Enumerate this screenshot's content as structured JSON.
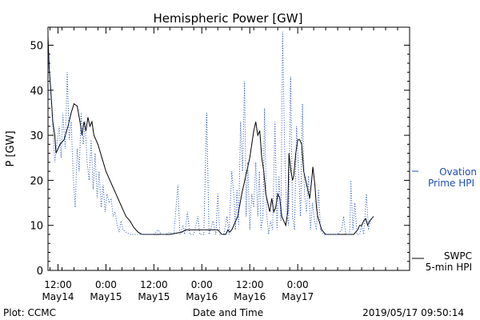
{
  "chart_data": {
    "type": "line",
    "title": "Hemispheric Power [GW]",
    "ylabel": "P [GW]",
    "xlabel": "Date and Time",
    "ylim": [
      0,
      54
    ],
    "xlim": [
      -2.5,
      88
    ],
    "yticks": [
      0,
      10,
      20,
      30,
      40,
      50
    ],
    "xticks": [
      {
        "x": 0,
        "top": "12:00",
        "bottom": "May14"
      },
      {
        "x": 12,
        "top": "0:00",
        "bottom": "May15"
      },
      {
        "x": 24,
        "top": "12:00",
        "bottom": "May15"
      },
      {
        "x": 36,
        "top": "0:00",
        "bottom": "May16"
      },
      {
        "x": 48,
        "top": "12:00",
        "bottom": "May16"
      },
      {
        "x": 60,
        "top": "0:00",
        "bottom": "May17"
      }
    ],
    "x_units": "hours from 2019-05-14 12:00 UT",
    "legend": {
      "ovation_line1": "Ovation",
      "ovation_line2": "Prime HPI",
      "swpc_line1": "SWPC",
      "swpc_line2": "5-min HPI"
    },
    "series": [
      {
        "name": "SWPC 5-min HPI",
        "color": "#000000",
        "style": "solid",
        "points": [
          [
            -2.5,
            52
          ],
          [
            -2.2,
            45
          ],
          [
            -1.8,
            40
          ],
          [
            -1.3,
            33
          ],
          [
            -0.8,
            30
          ],
          [
            -0.5,
            26
          ],
          [
            0.5,
            28
          ],
          [
            1.5,
            29
          ],
          [
            2.5,
            32
          ],
          [
            3.3,
            35
          ],
          [
            4,
            37
          ],
          [
            4.8,
            36.5
          ],
          [
            5.5,
            33
          ],
          [
            6,
            30
          ],
          [
            6.5,
            33
          ],
          [
            7,
            31
          ],
          [
            7.5,
            34
          ],
          [
            8,
            32
          ],
          [
            8.5,
            33
          ],
          [
            9,
            30
          ],
          [
            10,
            28
          ],
          [
            11,
            25
          ],
          [
            12,
            22
          ],
          [
            13,
            20
          ],
          [
            14,
            18
          ],
          [
            15,
            16
          ],
          [
            16,
            14
          ],
          [
            17,
            12
          ],
          [
            18,
            11
          ],
          [
            19,
            9.5
          ],
          [
            20,
            8.5
          ],
          [
            21,
            8
          ],
          [
            24,
            8
          ],
          [
            28,
            8
          ],
          [
            31,
            8.5
          ],
          [
            32,
            9
          ],
          [
            40,
            9
          ],
          [
            41,
            8
          ],
          [
            42,
            8
          ],
          [
            42.5,
            9
          ],
          [
            43,
            8.5
          ],
          [
            43.5,
            9
          ],
          [
            44,
            10
          ],
          [
            45,
            12
          ],
          [
            46,
            17
          ],
          [
            47,
            21
          ],
          [
            48,
            25
          ],
          [
            48.5,
            28
          ],
          [
            49,
            31
          ],
          [
            49.5,
            33
          ],
          [
            50,
            30
          ],
          [
            50.5,
            31
          ],
          [
            51,
            25
          ],
          [
            51.5,
            22
          ],
          [
            52,
            17
          ],
          [
            52.5,
            15
          ],
          [
            53,
            13
          ],
          [
            53.5,
            16
          ],
          [
            54,
            13
          ],
          [
            54.5,
            14
          ],
          [
            55,
            17
          ],
          [
            55.5,
            16
          ],
          [
            56,
            12
          ],
          [
            56.5,
            11
          ],
          [
            57,
            10
          ],
          [
            57.5,
            13
          ],
          [
            57.8,
            26
          ],
          [
            58.3,
            22
          ],
          [
            58.7,
            20
          ],
          [
            59,
            21
          ],
          [
            59.5,
            26
          ],
          [
            60,
            29
          ],
          [
            60.5,
            29
          ],
          [
            61,
            28
          ],
          [
            61.5,
            22
          ],
          [
            62,
            20
          ],
          [
            62.5,
            18
          ],
          [
            63,
            16
          ],
          [
            63.5,
            20
          ],
          [
            63.8,
            23
          ],
          [
            64.3,
            19
          ],
          [
            64.7,
            14
          ],
          [
            65,
            12
          ],
          [
            66,
            9
          ],
          [
            67,
            8
          ],
          [
            70,
            8
          ],
          [
            72,
            8
          ],
          [
            73,
            8
          ],
          [
            74,
            8
          ],
          [
            75,
            9
          ],
          [
            75.5,
            10
          ],
          [
            76,
            10
          ],
          [
            76.5,
            11
          ],
          [
            77,
            11.5
          ],
          [
            77.5,
            10
          ],
          [
            78,
            11
          ],
          [
            79,
            12
          ]
        ]
      },
      {
        "name": "Ovation Prime HPI",
        "color": "#1f4fb4",
        "style": "dotted",
        "points": [
          [
            -2.5,
            48
          ],
          [
            -2,
            42
          ],
          [
            -1.5,
            35
          ],
          [
            -1.2,
            30
          ],
          [
            -0.8,
            24
          ],
          [
            -0.3,
            28
          ],
          [
            0.3,
            32
          ],
          [
            0.8,
            25
          ],
          [
            1.2,
            35
          ],
          [
            1.8,
            27
          ],
          [
            2.3,
            44
          ],
          [
            2.8,
            29
          ],
          [
            3.3,
            33
          ],
          [
            3.8,
            21
          ],
          [
            4.3,
            14
          ],
          [
            4.8,
            27
          ],
          [
            5.3,
            22
          ],
          [
            5.8,
            35
          ],
          [
            6.3,
            28
          ],
          [
            6.8,
            33
          ],
          [
            7.3,
            24
          ],
          [
            7.8,
            20
          ],
          [
            8.3,
            29
          ],
          [
            8.8,
            18
          ],
          [
            9.3,
            26
          ],
          [
            9.8,
            16
          ],
          [
            10.3,
            22
          ],
          [
            10.8,
            14
          ],
          [
            11.3,
            19
          ],
          [
            11.8,
            13
          ],
          [
            12.3,
            17
          ],
          [
            12.8,
            15
          ],
          [
            13.3,
            16
          ],
          [
            13.8,
            12
          ],
          [
            14.3,
            13
          ],
          [
            14.8,
            10
          ],
          [
            15.3,
            8.5
          ],
          [
            15.8,
            11
          ],
          [
            16.3,
            9
          ],
          [
            17,
            8.5
          ],
          [
            18,
            8
          ],
          [
            20,
            8
          ],
          [
            22,
            8
          ],
          [
            24,
            8
          ],
          [
            25,
            9
          ],
          [
            26,
            8
          ],
          [
            27,
            8
          ],
          [
            28,
            8.5
          ],
          [
            29,
            8
          ],
          [
            30,
            19
          ],
          [
            30.5,
            8
          ],
          [
            31.3,
            10
          ],
          [
            31.7,
            8
          ],
          [
            32.4,
            13
          ],
          [
            33,
            8
          ],
          [
            34,
            8
          ],
          [
            35,
            12
          ],
          [
            35.5,
            8
          ],
          [
            36.5,
            8
          ],
          [
            37.2,
            35
          ],
          [
            37.8,
            8
          ],
          [
            38.8,
            11
          ],
          [
            39.5,
            8
          ],
          [
            40,
            17
          ],
          [
            40.5,
            8
          ],
          [
            41.5,
            8
          ],
          [
            42.3,
            12
          ],
          [
            42.8,
            8
          ],
          [
            43.5,
            22
          ],
          [
            44.1,
            16
          ],
          [
            44.4,
            9
          ],
          [
            44.8,
            18
          ],
          [
            45.2,
            10
          ],
          [
            45.7,
            33
          ],
          [
            46.2,
            22
          ],
          [
            46.7,
            42
          ],
          [
            47.1,
            12
          ],
          [
            47.5,
            24
          ],
          [
            48,
            9
          ],
          [
            48.5,
            17
          ],
          [
            49,
            14
          ],
          [
            49.5,
            24
          ],
          [
            50,
            12
          ],
          [
            50.4,
            22
          ],
          [
            50.8,
            9
          ],
          [
            51.3,
            12
          ],
          [
            51.7,
            36
          ],
          [
            52.2,
            13
          ],
          [
            52.7,
            8
          ],
          [
            53.2,
            11
          ],
          [
            53.7,
            9
          ],
          [
            54.3,
            33
          ],
          [
            54.8,
            9
          ],
          [
            55.3,
            21
          ],
          [
            55.8,
            11
          ],
          [
            56.2,
            53
          ],
          [
            56.7,
            28
          ],
          [
            57.2,
            13
          ],
          [
            57.7,
            10
          ],
          [
            58.2,
            43
          ],
          [
            58.7,
            12
          ],
          [
            59.2,
            9
          ],
          [
            59.7,
            32
          ],
          [
            60.2,
            22
          ],
          [
            60.7,
            12
          ],
          [
            61.2,
            37
          ],
          [
            61.7,
            17
          ],
          [
            62.2,
            13
          ],
          [
            62.7,
            21
          ],
          [
            63.2,
            9
          ],
          [
            63.7,
            15
          ],
          [
            64.2,
            11
          ],
          [
            64.7,
            9
          ],
          [
            65.2,
            18
          ],
          [
            65.7,
            9
          ],
          [
            66.5,
            8
          ],
          [
            68,
            8
          ],
          [
            70,
            8
          ],
          [
            71,
            9
          ],
          [
            71.5,
            12
          ],
          [
            72,
            8
          ],
          [
            73,
            8
          ],
          [
            73.3,
            20
          ],
          [
            73.8,
            9
          ],
          [
            74.3,
            15
          ],
          [
            74.8,
            8
          ],
          [
            75.5,
            8
          ],
          [
            76,
            10
          ],
          [
            76.5,
            8
          ],
          [
            77.2,
            17
          ],
          [
            77.7,
            9
          ],
          [
            78.2,
            11
          ],
          [
            79,
            12
          ]
        ]
      }
    ]
  },
  "footer": {
    "plot_credit": "Plot: CCMC",
    "timestamp": "2019/05/17 09:50:14"
  }
}
